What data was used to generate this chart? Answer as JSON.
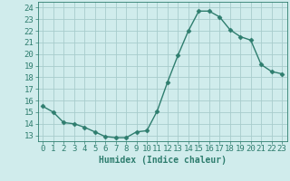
{
  "x": [
    0,
    1,
    2,
    3,
    4,
    5,
    6,
    7,
    8,
    9,
    10,
    11,
    12,
    13,
    14,
    15,
    16,
    17,
    18,
    19,
    20,
    21,
    22,
    23
  ],
  "y": [
    15.5,
    15.0,
    14.1,
    14.0,
    13.7,
    13.3,
    12.9,
    12.8,
    12.8,
    13.3,
    13.4,
    15.1,
    17.6,
    19.9,
    22.0,
    23.7,
    23.7,
    23.2,
    22.1,
    21.5,
    21.2,
    19.1,
    18.5,
    18.3
  ],
  "line_color": "#2e7d6e",
  "marker": "D",
  "markersize": 2.5,
  "linewidth": 1.0,
  "bg_color": "#d0ecec",
  "grid_color": "#a8cccc",
  "xlabel": "Humidex (Indice chaleur)",
  "xlabel_fontsize": 7,
  "ytick_labels": [
    13,
    14,
    15,
    16,
    17,
    18,
    19,
    20,
    21,
    22,
    23,
    24
  ],
  "ylim": [
    12.5,
    24.5
  ],
  "xlim": [
    -0.5,
    23.5
  ],
  "tick_fontsize": 6.5
}
